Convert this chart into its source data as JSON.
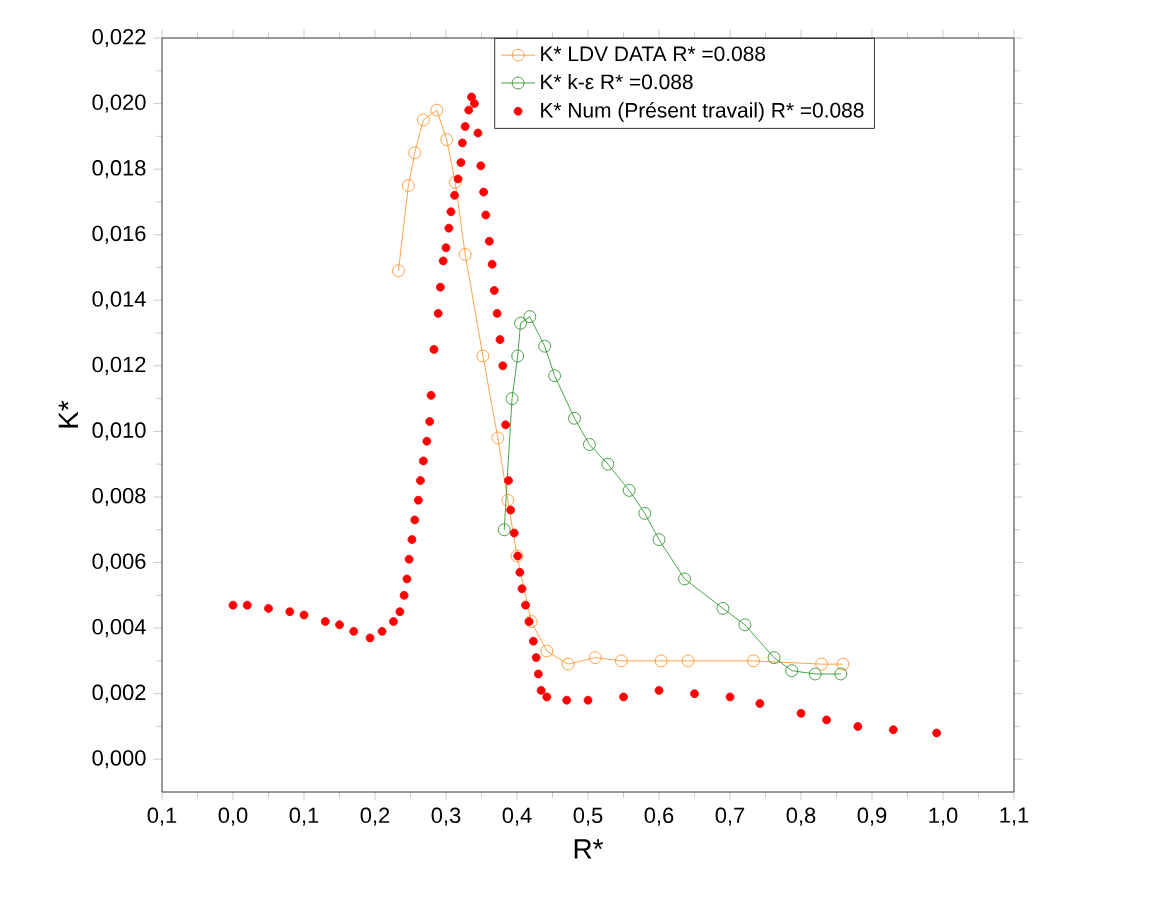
{
  "chart_data": {
    "type": "line",
    "xlabel": "R*",
    "ylabel": "K*",
    "xlim": [
      -0.1,
      1.1
    ],
    "ylim": [
      -0.001,
      0.022
    ],
    "xticks": [
      {
        "value": -0.1,
        "label": "0,1"
      },
      {
        "value": 0.0,
        "label": "0,0"
      },
      {
        "value": 0.1,
        "label": "0,1"
      },
      {
        "value": 0.2,
        "label": "0,2"
      },
      {
        "value": 0.3,
        "label": "0,3"
      },
      {
        "value": 0.4,
        "label": "0,4"
      },
      {
        "value": 0.5,
        "label": "0,5"
      },
      {
        "value": 0.6,
        "label": "0,6"
      },
      {
        "value": 0.7,
        "label": "0,7"
      },
      {
        "value": 0.8,
        "label": "0,8"
      },
      {
        "value": 0.9,
        "label": "0,9"
      },
      {
        "value": 1.0,
        "label": "1,0"
      },
      {
        "value": 1.1,
        "label": "1,1"
      }
    ],
    "yticks": [
      {
        "value": 0.0,
        "label": "0,000"
      },
      {
        "value": 0.002,
        "label": "0,002"
      },
      {
        "value": 0.004,
        "label": "0,004"
      },
      {
        "value": 0.006,
        "label": "0,006"
      },
      {
        "value": 0.008,
        "label": "0,008"
      },
      {
        "value": 0.01,
        "label": "0,010"
      },
      {
        "value": 0.012,
        "label": "0,012"
      },
      {
        "value": 0.014,
        "label": "0,014"
      },
      {
        "value": 0.016,
        "label": "0,016"
      },
      {
        "value": 0.018,
        "label": "0,018"
      },
      {
        "value": 0.02,
        "label": "0,020"
      },
      {
        "value": 0.022,
        "label": "0,022"
      }
    ],
    "legend": "top right",
    "marker": "circle",
    "line_style": "solid",
    "series": [
      {
        "name": "K*  LDV DATA          R* =0.088",
        "color": "#ff8c1a",
        "x": [
          0.233,
          0.247,
          0.256,
          0.268,
          0.287,
          0.301,
          0.313,
          0.327,
          0.352,
          0.373,
          0.387,
          0.4,
          0.42,
          0.442,
          0.472,
          0.51,
          0.547,
          0.603,
          0.641,
          0.733,
          0.829,
          0.859
        ],
        "values": [
          0.0149,
          0.0175,
          0.0185,
          0.0195,
          0.0198,
          0.0189,
          0.0176,
          0.0154,
          0.0123,
          0.0098,
          0.0079,
          0.0062,
          0.0042,
          0.0033,
          0.0029,
          0.0031,
          0.003,
          0.003,
          0.003,
          0.003,
          0.0029,
          0.0029
        ]
      },
      {
        "name": "K*  k-ε      R* =0.088",
        "color": "#1e8c1e",
        "x": [
          0.382,
          0.393,
          0.401,
          0.405,
          0.418,
          0.439,
          0.453,
          0.481,
          0.502,
          0.528,
          0.558,
          0.58,
          0.6,
          0.636,
          0.69,
          0.721,
          0.762,
          0.787,
          0.82,
          0.856
        ],
        "values": [
          0.007,
          0.011,
          0.0123,
          0.0133,
          0.0135,
          0.0126,
          0.0117,
          0.0104,
          0.0096,
          0.009,
          0.0082,
          0.0075,
          0.0067,
          0.0055,
          0.0046,
          0.0041,
          0.0031,
          0.0027,
          0.0026,
          0.0026
        ]
      },
      {
        "name": "K* Num (Présent travail)  R* =0.088",
        "type": "scatter",
        "color": "#ff0000",
        "x": [
          0.0,
          0.02,
          0.05,
          0.08,
          0.1,
          0.13,
          0.15,
          0.17,
          0.193,
          0.21,
          0.226,
          0.235,
          0.241,
          0.245,
          0.248,
          0.252,
          0.256,
          0.261,
          0.264,
          0.268,
          0.273,
          0.277,
          0.279,
          0.283,
          0.289,
          0.292,
          0.296,
          0.3,
          0.304,
          0.307,
          0.312,
          0.317,
          0.321,
          0.323,
          0.327,
          0.332,
          0.336,
          0.34,
          0.345,
          0.349,
          0.353,
          0.356,
          0.361,
          0.365,
          0.368,
          0.372,
          0.376,
          0.38,
          0.384,
          0.388,
          0.391,
          0.396,
          0.401,
          0.404,
          0.407,
          0.412,
          0.417,
          0.423,
          0.427,
          0.43,
          0.434,
          0.442,
          0.47,
          0.5,
          0.55,
          0.6,
          0.65,
          0.7,
          0.742,
          0.8,
          0.836,
          0.88,
          0.93,
          0.991
        ],
        "values": [
          0.0047,
          0.0047,
          0.0046,
          0.0045,
          0.0044,
          0.0042,
          0.0041,
          0.0039,
          0.0037,
          0.0039,
          0.0042,
          0.0045,
          0.005,
          0.0055,
          0.0061,
          0.0067,
          0.0073,
          0.0079,
          0.0085,
          0.0091,
          0.0097,
          0.0103,
          0.0111,
          0.0125,
          0.0136,
          0.0144,
          0.0152,
          0.0156,
          0.0162,
          0.0167,
          0.0172,
          0.0177,
          0.0182,
          0.0188,
          0.0193,
          0.0198,
          0.0202,
          0.02,
          0.0191,
          0.0181,
          0.0173,
          0.0166,
          0.0158,
          0.0151,
          0.0143,
          0.0136,
          0.0128,
          0.012,
          0.0102,
          0.0085,
          0.0076,
          0.0069,
          0.0062,
          0.0057,
          0.0052,
          0.0047,
          0.0042,
          0.0036,
          0.0031,
          0.0026,
          0.0021,
          0.0019,
          0.0018,
          0.0018,
          0.0019,
          0.0021,
          0.002,
          0.0019,
          0.0017,
          0.0014,
          0.0012,
          0.001,
          0.0009,
          0.0008
        ]
      }
    ]
  }
}
